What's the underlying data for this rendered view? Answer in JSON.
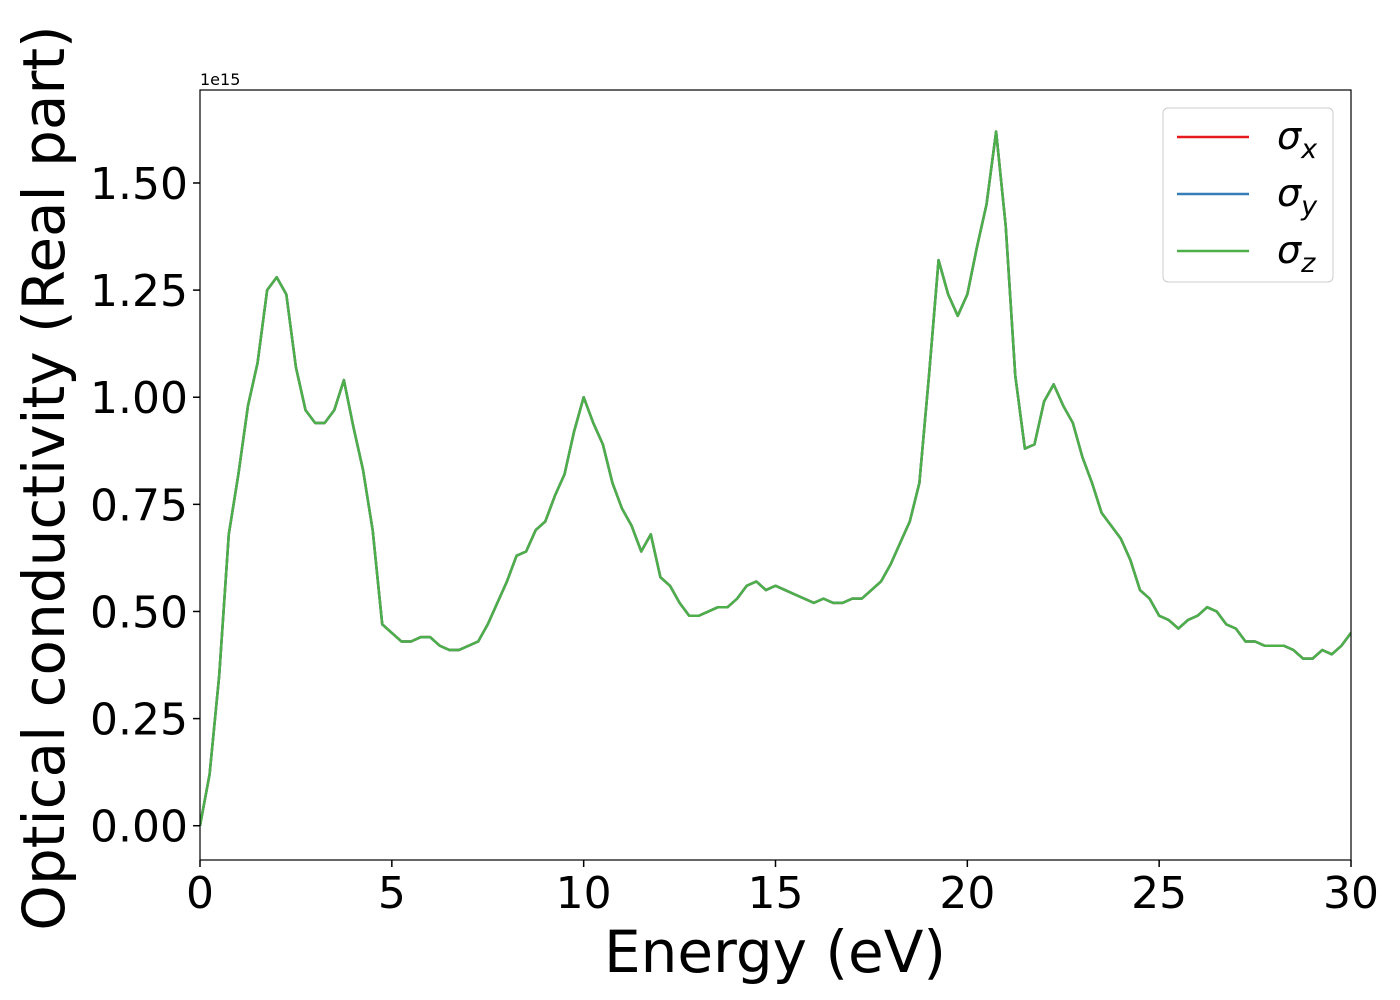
{
  "chart_data": {
    "type": "line",
    "xlabel": "Energy (eV)",
    "ylabel": "Optical conductivity (Real part)",
    "yaxis_offset": "1e15",
    "xlim": [
      0,
      30
    ],
    "ylim": [
      -0.08,
      1.717
    ],
    "xticks": [
      0,
      5,
      10,
      15,
      20,
      25,
      30
    ],
    "yticks": [
      {
        "value": 0,
        "label": "0.00"
      },
      {
        "value": 0.25,
        "label": "0.25"
      },
      {
        "value": 0.5,
        "label": "0.50"
      },
      {
        "value": 0.75,
        "label": "0.75"
      },
      {
        "value": 1,
        "label": "1.00"
      },
      {
        "value": 1.25,
        "label": "1.25"
      },
      {
        "value": 1.5,
        "label": "1.50"
      }
    ],
    "legend": "upper right",
    "x": [
      0,
      0.25,
      0.5,
      0.75,
      1,
      1.25,
      1.5,
      1.75,
      2,
      2.25,
      2.5,
      2.75,
      3,
      3.25,
      3.5,
      3.75,
      4,
      4.25,
      4.5,
      4.75,
      5,
      5.25,
      5.5,
      5.75,
      6,
      6.25,
      6.5,
      6.75,
      7,
      7.25,
      7.5,
      7.75,
      8,
      8.25,
      8.5,
      8.75,
      9,
      9.25,
      9.5,
      9.75,
      10,
      10.25,
      10.5,
      10.75,
      11,
      11.25,
      11.5,
      11.75,
      12,
      12.25,
      12.5,
      12.75,
      13,
      13.25,
      13.5,
      13.75,
      14,
      14.25,
      14.5,
      14.75,
      15,
      15.25,
      15.5,
      15.75,
      16,
      16.25,
      16.5,
      16.75,
      17,
      17.25,
      17.5,
      17.75,
      18,
      18.25,
      18.5,
      18.75,
      19,
      19.25,
      19.5,
      19.75,
      20,
      20.25,
      20.5,
      20.75,
      21,
      21.25,
      21.5,
      21.75,
      22,
      22.25,
      22.5,
      22.75,
      23,
      23.25,
      23.5,
      23.75,
      24,
      24.25,
      24.5,
      24.75,
      25,
      25.25,
      25.5,
      25.75,
      26,
      26.25,
      26.5,
      26.75,
      27,
      27.25,
      27.5,
      27.75,
      28,
      28.25,
      28.5,
      28.75,
      29,
      29.25,
      29.5,
      29.75,
      30
    ],
    "series": [
      {
        "name": "σx",
        "color": "#e41a1c",
        "values": [
          0,
          0.12,
          0.35,
          0.68,
          0.82,
          0.98,
          1.08,
          1.25,
          1.28,
          1.24,
          1.07,
          0.97,
          0.94,
          0.94,
          0.97,
          1.04,
          0.93,
          0.83,
          0.69,
          0.47,
          0.45,
          0.43,
          0.43,
          0.44,
          0.44,
          0.42,
          0.41,
          0.41,
          0.42,
          0.43,
          0.47,
          0.52,
          0.57,
          0.63,
          0.64,
          0.69,
          0.71,
          0.77,
          0.82,
          0.92,
          1,
          0.94,
          0.89,
          0.8,
          0.74,
          0.7,
          0.64,
          0.68,
          0.58,
          0.56,
          0.52,
          0.49,
          0.49,
          0.5,
          0.51,
          0.51,
          0.53,
          0.56,
          0.57,
          0.55,
          0.56,
          0.55,
          0.54,
          0.53,
          0.52,
          0.53,
          0.52,
          0.52,
          0.53,
          0.53,
          0.55,
          0.57,
          0.61,
          0.66,
          0.71,
          0.8,
          1.05,
          1.32,
          1.24,
          1.19,
          1.24,
          1.35,
          1.45,
          1.62,
          1.4,
          1.05,
          0.88,
          0.89,
          0.99,
          1.03,
          0.98,
          0.94,
          0.86,
          0.8,
          0.73,
          0.7,
          0.67,
          0.62,
          0.55,
          0.53,
          0.49,
          0.48,
          0.46,
          0.48,
          0.49,
          0.51,
          0.5,
          0.47,
          0.46,
          0.43,
          0.43,
          0.42,
          0.42,
          0.42,
          0.41,
          0.39,
          0.39,
          0.41,
          0.4,
          0.42,
          0.45
        ]
      },
      {
        "name": "σy",
        "color": "#377eb8",
        "values": [
          0,
          0.12,
          0.35,
          0.68,
          0.82,
          0.98,
          1.08,
          1.25,
          1.28,
          1.24,
          1.07,
          0.97,
          0.94,
          0.94,
          0.97,
          1.04,
          0.93,
          0.83,
          0.69,
          0.47,
          0.45,
          0.43,
          0.43,
          0.44,
          0.44,
          0.42,
          0.41,
          0.41,
          0.42,
          0.43,
          0.47,
          0.52,
          0.57,
          0.63,
          0.64,
          0.69,
          0.71,
          0.77,
          0.82,
          0.92,
          1,
          0.94,
          0.89,
          0.8,
          0.74,
          0.7,
          0.64,
          0.68,
          0.58,
          0.56,
          0.52,
          0.49,
          0.49,
          0.5,
          0.51,
          0.51,
          0.53,
          0.56,
          0.57,
          0.55,
          0.56,
          0.55,
          0.54,
          0.53,
          0.52,
          0.53,
          0.52,
          0.52,
          0.53,
          0.53,
          0.55,
          0.57,
          0.61,
          0.66,
          0.71,
          0.8,
          1.05,
          1.32,
          1.24,
          1.19,
          1.24,
          1.35,
          1.45,
          1.62,
          1.4,
          1.05,
          0.88,
          0.89,
          0.99,
          1.03,
          0.98,
          0.94,
          0.86,
          0.8,
          0.73,
          0.7,
          0.67,
          0.62,
          0.55,
          0.53,
          0.49,
          0.48,
          0.46,
          0.48,
          0.49,
          0.51,
          0.5,
          0.47,
          0.46,
          0.43,
          0.43,
          0.42,
          0.42,
          0.42,
          0.41,
          0.39,
          0.39,
          0.41,
          0.4,
          0.42,
          0.45
        ]
      },
      {
        "name": "σz",
        "color": "#4daf4a",
        "values": [
          0,
          0.12,
          0.35,
          0.68,
          0.82,
          0.98,
          1.08,
          1.25,
          1.28,
          1.24,
          1.07,
          0.97,
          0.94,
          0.94,
          0.97,
          1.04,
          0.93,
          0.83,
          0.69,
          0.47,
          0.45,
          0.43,
          0.43,
          0.44,
          0.44,
          0.42,
          0.41,
          0.41,
          0.42,
          0.43,
          0.47,
          0.52,
          0.57,
          0.63,
          0.64,
          0.69,
          0.71,
          0.77,
          0.82,
          0.92,
          1,
          0.94,
          0.89,
          0.8,
          0.74,
          0.7,
          0.64,
          0.68,
          0.58,
          0.56,
          0.52,
          0.49,
          0.49,
          0.5,
          0.51,
          0.51,
          0.53,
          0.56,
          0.57,
          0.55,
          0.56,
          0.55,
          0.54,
          0.53,
          0.52,
          0.53,
          0.52,
          0.52,
          0.53,
          0.53,
          0.55,
          0.57,
          0.61,
          0.66,
          0.71,
          0.8,
          1.05,
          1.32,
          1.24,
          1.19,
          1.24,
          1.35,
          1.45,
          1.62,
          1.4,
          1.05,
          0.88,
          0.89,
          0.99,
          1.03,
          0.98,
          0.94,
          0.86,
          0.8,
          0.73,
          0.7,
          0.67,
          0.62,
          0.55,
          0.53,
          0.49,
          0.48,
          0.46,
          0.48,
          0.49,
          0.51,
          0.5,
          0.47,
          0.46,
          0.43,
          0.43,
          0.42,
          0.42,
          0.42,
          0.41,
          0.39,
          0.39,
          0.41,
          0.4,
          0.42,
          0.45
        ]
      }
    ]
  }
}
